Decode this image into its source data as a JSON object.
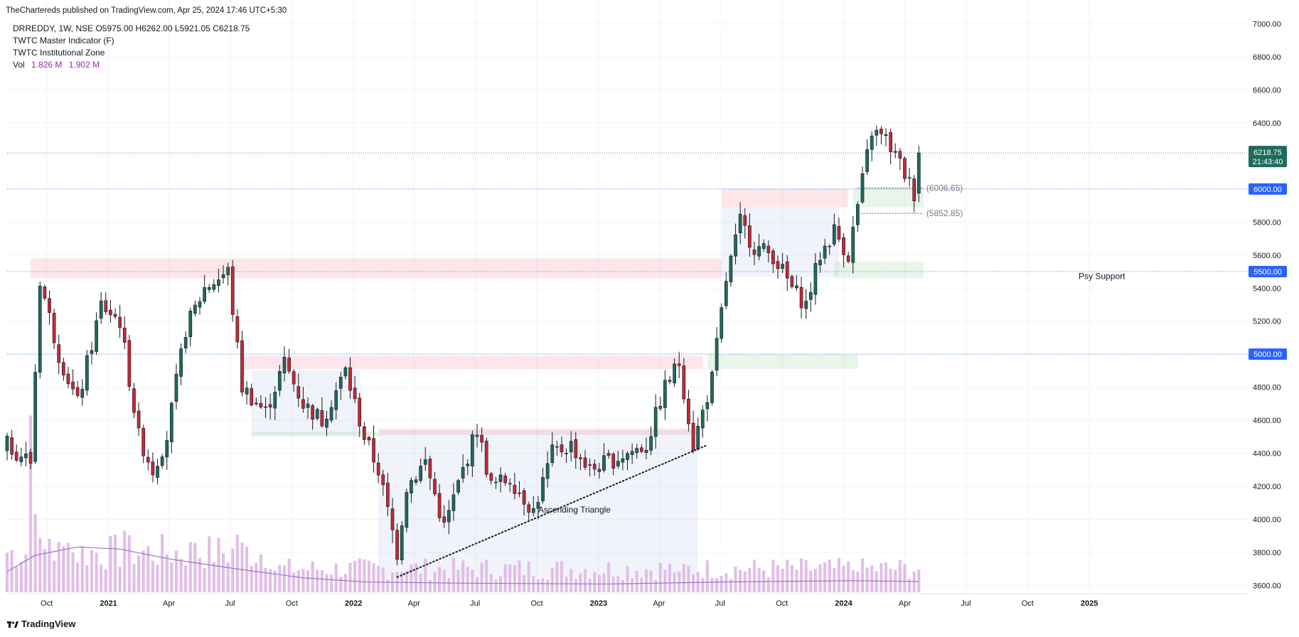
{
  "header": {
    "publish_line": "TheChartereds published on TradingView.com, Apr 25, 2024 17:46 UTC+5:30",
    "symbol_line": "DRREDDY, 1W, NSE  O5975.00  H6262.00  L5921.05  C6218.75",
    "indicator_1": "TWTC Master Indicator (F)",
    "indicator_2": "TWTC Institutional Zone",
    "vol_label": "Vol",
    "vol_value_1": "1.826 M",
    "vol_value_2": "1.902 M"
  },
  "footer": {
    "brand": "TradingView"
  },
  "colors": {
    "up": "#26a69a",
    "up_body": "#1e6b5c",
    "down": "#ef5350",
    "down_body": "#c62834",
    "volume": "#e1bee7",
    "vol_ma": "#9575cd",
    "axis_text": "#131722",
    "price_tag": "#1e6b5c",
    "level_tag": "#2962ff"
  },
  "chart_data": {
    "type": "candlestick",
    "symbol": "DRREDDY",
    "interval": "1W",
    "exchange": "NSE",
    "ylim": [
      3550,
      7050
    ],
    "y_ticks": [
      3600,
      3800,
      4000,
      4200,
      4400,
      4600,
      4800,
      5000,
      5200,
      5400,
      5600,
      5800,
      6000,
      6200,
      6400,
      6600,
      6800,
      7000
    ],
    "y_tick_labels": [
      "3600.00",
      "3800.00",
      "4000.00",
      "4200.00",
      "4400.00",
      "4600.00",
      "4800.00",
      "5000.00",
      "5200.00",
      "5400.00",
      "5600.00",
      "5800.00",
      "6000.00",
      "6200.00",
      "6400.00",
      "6600.00",
      "6800.00",
      "7000.00"
    ],
    "x_start": "2020-08-03",
    "x_end": "2025-08-25",
    "x_ticks": [
      {
        "label": "Oct",
        "date": "2020-10-01"
      },
      {
        "label": "2021",
        "date": "2021-01-01"
      },
      {
        "label": "Apr",
        "date": "2021-04-01"
      },
      {
        "label": "Jul",
        "date": "2021-07-01"
      },
      {
        "label": "Oct",
        "date": "2021-10-01"
      },
      {
        "label": "2022",
        "date": "2022-01-01"
      },
      {
        "label": "Apr",
        "date": "2022-04-01"
      },
      {
        "label": "Jul",
        "date": "2022-07-01"
      },
      {
        "label": "Oct",
        "date": "2022-10-01"
      },
      {
        "label": "2023",
        "date": "2023-01-01"
      },
      {
        "label": "Apr",
        "date": "2023-04-01"
      },
      {
        "label": "Jul",
        "date": "2023-07-01"
      },
      {
        "label": "Oct",
        "date": "2023-10-01"
      },
      {
        "label": "2024",
        "date": "2024-01-01"
      },
      {
        "label": "Apr",
        "date": "2024-04-01"
      },
      {
        "label": "Jul",
        "date": "2024-07-01"
      },
      {
        "label": "Oct",
        "date": "2024-10-01"
      },
      {
        "label": "2025",
        "date": "2025-01-01"
      }
    ],
    "close_path": [
      {
        "date": "2020-08-03",
        "value": 4450
      },
      {
        "date": "2020-09-07",
        "value": 4350
      },
      {
        "date": "2020-09-21",
        "value": 5450
      },
      {
        "date": "2020-10-19",
        "value": 5000
      },
      {
        "date": "2020-11-16",
        "value": 4700
      },
      {
        "date": "2020-12-21",
        "value": 5300
      },
      {
        "date": "2021-01-18",
        "value": 5200
      },
      {
        "date": "2021-02-15",
        "value": 4500
      },
      {
        "date": "2021-03-08",
        "value": 4300
      },
      {
        "date": "2021-03-29",
        "value": 4500
      },
      {
        "date": "2021-04-26",
        "value": 5150
      },
      {
        "date": "2021-05-24",
        "value": 5400
      },
      {
        "date": "2021-06-28",
        "value": 5500
      },
      {
        "date": "2021-07-19",
        "value": 4800
      },
      {
        "date": "2021-08-23",
        "value": 4650
      },
      {
        "date": "2021-09-20",
        "value": 4950
      },
      {
        "date": "2021-10-18",
        "value": 4700
      },
      {
        "date": "2021-11-15",
        "value": 4600
      },
      {
        "date": "2021-12-20",
        "value": 4900
      },
      {
        "date": "2022-01-17",
        "value": 4500
      },
      {
        "date": "2022-02-07",
        "value": 4300
      },
      {
        "date": "2022-03-07",
        "value": 3800
      },
      {
        "date": "2022-03-21",
        "value": 4200
      },
      {
        "date": "2022-04-18",
        "value": 4350
      },
      {
        "date": "2022-05-16",
        "value": 3950
      },
      {
        "date": "2022-06-13",
        "value": 4300
      },
      {
        "date": "2022-07-04",
        "value": 4550
      },
      {
        "date": "2022-07-25",
        "value": 4200
      },
      {
        "date": "2022-08-22",
        "value": 4250
      },
      {
        "date": "2022-09-26",
        "value": 4050
      },
      {
        "date": "2022-10-24",
        "value": 4400
      },
      {
        "date": "2022-11-21",
        "value": 4450
      },
      {
        "date": "2022-12-19",
        "value": 4300
      },
      {
        "date": "2023-01-16",
        "value": 4350
      },
      {
        "date": "2023-02-13",
        "value": 4400
      },
      {
        "date": "2023-03-13",
        "value": 4450
      },
      {
        "date": "2023-04-10",
        "value": 4800
      },
      {
        "date": "2023-05-01",
        "value": 4950
      },
      {
        "date": "2023-05-22",
        "value": 4450
      },
      {
        "date": "2023-06-19",
        "value": 4850
      },
      {
        "date": "2023-07-10",
        "value": 5450
      },
      {
        "date": "2023-07-31",
        "value": 5800
      },
      {
        "date": "2023-08-21",
        "value": 5650
      },
      {
        "date": "2023-09-18",
        "value": 5600
      },
      {
        "date": "2023-10-16",
        "value": 5400
      },
      {
        "date": "2023-11-06",
        "value": 5300
      },
      {
        "date": "2023-11-27",
        "value": 5600
      },
      {
        "date": "2023-12-18",
        "value": 5750
      },
      {
        "date": "2024-01-08",
        "value": 5600
      },
      {
        "date": "2024-01-22",
        "value": 5900
      },
      {
        "date": "2024-02-12",
        "value": 6350
      },
      {
        "date": "2024-03-04",
        "value": 6300
      },
      {
        "date": "2024-03-25",
        "value": 6150
      },
      {
        "date": "2024-04-15",
        "value": 5975
      },
      {
        "date": "2024-04-22",
        "value": 6218.75
      }
    ],
    "last_candle": {
      "open": 5975.0,
      "high": 6262.0,
      "low": 5921.05,
      "close": 6218.75
    },
    "zones": [
      {
        "kind": "supply",
        "from": "2020-09-07",
        "to": "2023-07-03",
        "low": 5460,
        "high": 5580
      },
      {
        "kind": "supply",
        "from": "2023-07-03",
        "to": "2024-01-08",
        "low": 5890,
        "high": 6000
      },
      {
        "kind": "supply",
        "from": "2021-07-19",
        "to": "2023-06-05",
        "low": 4910,
        "high": 4990
      },
      {
        "kind": "supply",
        "from": "2022-02-07",
        "to": "2023-06-05",
        "low": 4510,
        "high": 4550
      },
      {
        "kind": "demand",
        "from": "2023-06-12",
        "to": "2024-01-22",
        "low": 4910,
        "high": 5000
      },
      {
        "kind": "demand",
        "from": "2023-12-18",
        "to": "2024-04-29",
        "low": 5460,
        "high": 5560
      },
      {
        "kind": "demand",
        "from": "2024-01-15",
        "to": "2024-04-29",
        "low": 5890,
        "high": 6006.65
      },
      {
        "kind": "demand",
        "from": "2021-08-02",
        "to": "2022-02-07",
        "low": 4500,
        "high": 4530
      },
      {
        "kind": "range",
        "from": "2021-08-02",
        "to": "2022-01-10",
        "low": 4510,
        "high": 4900
      },
      {
        "kind": "range",
        "from": "2022-02-07",
        "to": "2023-05-29",
        "low": 3650,
        "high": 4540
      },
      {
        "kind": "range",
        "from": "2023-07-03",
        "to": "2023-12-25",
        "low": 5470,
        "high": 5890
      }
    ],
    "trendline": {
      "from_date": "2022-03-07",
      "from_value": 3650,
      "to_date": "2023-06-12",
      "to_value": 4450,
      "style": "dotted"
    },
    "horizontal_levels": [
      {
        "value": 6218.75,
        "style": "dotted-price"
      },
      {
        "value": 6000,
        "style": "dotted"
      },
      {
        "value": 5500,
        "style": "dotted"
      },
      {
        "value": 5000,
        "style": "dotted"
      }
    ],
    "short_levels": [
      {
        "value": 6006.65,
        "label": "(6006.65)",
        "from": "2024-01-22",
        "to": "2024-04-29"
      },
      {
        "value": 5852.85,
        "label": "(5852.85)",
        "from": "2024-01-22",
        "to": "2024-04-29"
      }
    ],
    "price_label": {
      "value": 6218.75,
      "text": "6218.75",
      "countdown": "21:43:40"
    },
    "level_labels": [
      {
        "value": 6000,
        "text": "6000.00"
      },
      {
        "value": 5500,
        "text": "5500.00"
      },
      {
        "value": 5000,
        "text": "5000.00"
      }
    ],
    "annotations": [
      {
        "text": "Ascending Triangle",
        "date": "2022-10-03",
        "value": 4040
      },
      {
        "text": "Psy Support",
        "date": "2024-12-16",
        "value": 5455
      }
    ],
    "volume": {
      "base_m": 0.6,
      "spikes": [
        {
          "date": "2020-09-07",
          "value": 4.3
        },
        {
          "date": "2020-09-14",
          "value": 1.9
        },
        {
          "date": "2020-10-05",
          "value": 1.3
        },
        {
          "date": "2020-11-02",
          "value": 1.2
        },
        {
          "date": "2021-01-25",
          "value": 1.5
        },
        {
          "date": "2021-05-10",
          "value": 1.2
        },
        {
          "date": "2021-07-12",
          "value": 1.4
        },
        {
          "date": "2022-03-14",
          "value": 0.5
        },
        {
          "date": "2023-05-01",
          "value": 0.5
        },
        {
          "date": "2024-01-22",
          "value": 0.5
        }
      ]
    },
    "vol_ma_path": [
      {
        "date": "2020-08-03",
        "value": 0.5
      },
      {
        "date": "2020-09-14",
        "value": 0.9
      },
      {
        "date": "2020-11-16",
        "value": 1.1
      },
      {
        "date": "2021-01-18",
        "value": 1.05
      },
      {
        "date": "2021-04-05",
        "value": 0.8
      },
      {
        "date": "2021-07-19",
        "value": 0.55
      },
      {
        "date": "2021-10-18",
        "value": 0.35
      },
      {
        "date": "2022-01-17",
        "value": 0.25
      },
      {
        "date": "2022-06-13",
        "value": 0.22
      },
      {
        "date": "2023-01-16",
        "value": 0.2
      },
      {
        "date": "2023-07-10",
        "value": 0.25
      },
      {
        "date": "2024-01-15",
        "value": 0.28
      },
      {
        "date": "2024-04-22",
        "value": 0.26
      }
    ]
  }
}
